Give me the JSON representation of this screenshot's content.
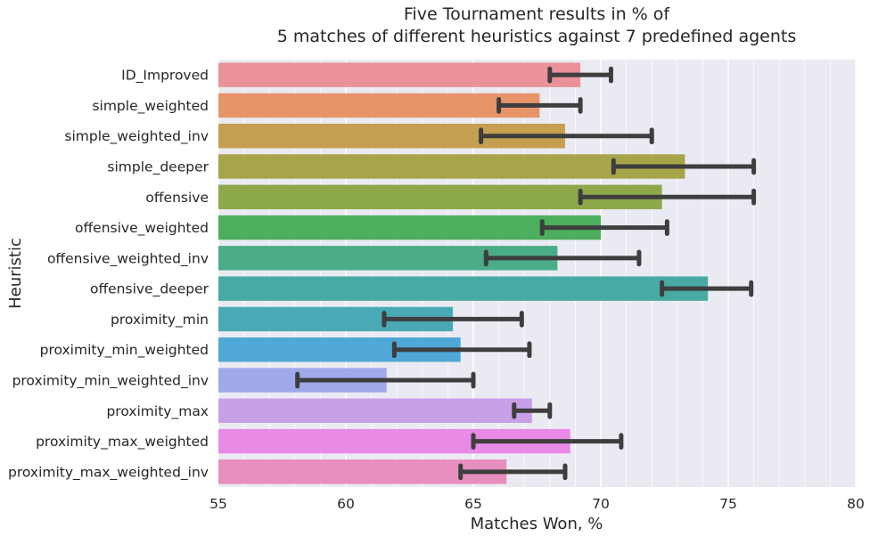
{
  "chart_data": {
    "type": "bar",
    "orientation": "horizontal",
    "title": "Five Tournament results in % of\n5 matches of different heuristics against 7 predefined agents",
    "title_lines": [
      "Five Tournament results in % of",
      "5 matches of different heuristics against 7 predefined agents"
    ],
    "xlabel": "Matches Won, %",
    "ylabel": "Heuristic",
    "xlim": [
      55,
      80
    ],
    "xticks": [
      55,
      60,
      65,
      70,
      75,
      80
    ],
    "minor_xticks": [
      56,
      57,
      58,
      59,
      61,
      62,
      63,
      64,
      66,
      67,
      68,
      69,
      71,
      72,
      73,
      74,
      76,
      77,
      78,
      79
    ],
    "grid": true,
    "legend": "none",
    "categories": [
      "ID_Improved",
      "simple_weighted",
      "simple_weighted_inv",
      "simple_deeper",
      "offensive",
      "offensive_weighted",
      "offensive_weighted_inv",
      "offensive_deeper",
      "proximity_min",
      "proximity_min_weighted",
      "proximity_min_weighted_inv",
      "proximity_max",
      "proximity_max_weighted",
      "proximity_max_weighted_inv"
    ],
    "values": [
      69.2,
      67.6,
      68.6,
      73.3,
      72.4,
      70.0,
      68.3,
      74.2,
      64.2,
      64.5,
      61.6,
      67.3,
      68.8,
      66.3
    ],
    "error_low": [
      68.0,
      66.0,
      65.3,
      70.5,
      69.2,
      67.7,
      65.5,
      72.4,
      61.5,
      61.9,
      58.1,
      66.6,
      65.0,
      64.5
    ],
    "error_high": [
      70.4,
      69.2,
      72.0,
      76.0,
      76.0,
      72.6,
      71.5,
      75.9,
      66.9,
      67.2,
      65.0,
      68.0,
      70.8,
      68.6
    ],
    "colors": [
      "#ea919a",
      "#e6956a",
      "#c49f4f",
      "#a7a54a",
      "#8ea84c",
      "#4caf5d",
      "#4aad88",
      "#48aba3",
      "#49aab5",
      "#4fa8d5",
      "#9fa9ea",
      "#c8a0e8",
      "#e88ae6",
      "#e68fbf"
    ],
    "error_color": "#3e3e3e",
    "plot_background": "#eaeaf2",
    "grid_color": "#ffffff"
  }
}
